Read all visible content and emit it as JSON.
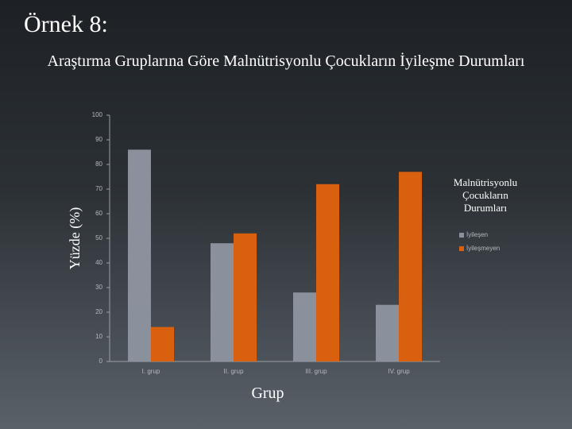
{
  "slide_title": "Örnek 8:",
  "chart_data": {
    "type": "bar",
    "title": "Araştırma Gruplarına Göre Malnütrisyonlu Çocukların İyileşme Durumları",
    "x_label": "Grup",
    "y_label": "Yüzde (%)",
    "legend_title": "Malnütrisyonlu Çocukların Durumları",
    "categories": [
      "I. grup",
      "II. grup",
      "III. grup",
      "IV. grup"
    ],
    "series": [
      {
        "name": "İyileşen",
        "color": "#8a919c",
        "values": [
          86,
          48,
          28,
          23
        ]
      },
      {
        "name": "İyileşmeyen",
        "color": "#d9600e",
        "values": [
          14,
          52,
          72,
          77
        ]
      }
    ],
    "ylim": [
      0,
      100
    ],
    "yticks": [
      0,
      10,
      20,
      30,
      40,
      50,
      60,
      70,
      80,
      90,
      100
    ],
    "legend_position": "right"
  }
}
